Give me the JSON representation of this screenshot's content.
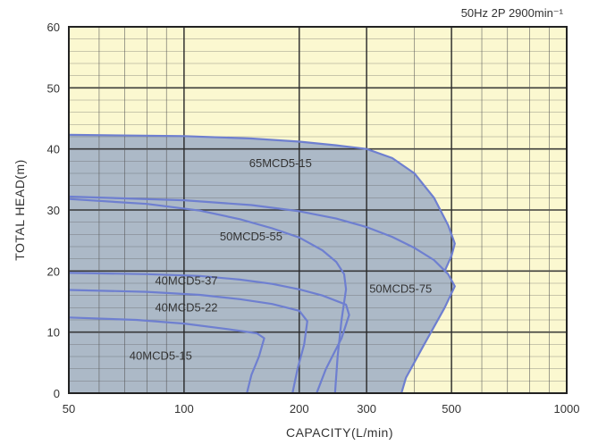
{
  "chart_data": {
    "type": "area",
    "title": "",
    "subtitle": "50Hz 2P 2900min⁻¹",
    "xlabel": "CAPACITY(L/min)",
    "ylabel": "TOTAL HEAD(m)",
    "x_scale": "log",
    "xlim": [
      50,
      1000
    ],
    "ylim": [
      0,
      60
    ],
    "x_ticks": [
      "50",
      "100",
      "200",
      "300",
      "500",
      "1000"
    ],
    "y_ticks": [
      "0",
      "10",
      "20",
      "30",
      "40",
      "50",
      "60"
    ],
    "grid": true,
    "colors": {
      "plot_background": "#fbf8d0",
      "region_fill": "#a8b5c6",
      "curve_stroke": "#6e7fd0",
      "grid_major": "#2a2a2a",
      "grid_minor": "#555555",
      "frame": "#222222"
    },
    "series": [
      {
        "name": "65MCD5-15",
        "points": [
          [
            50,
            42.3
          ],
          [
            100,
            42.1
          ],
          [
            150,
            41.7
          ],
          [
            200,
            41.2
          ],
          [
            250,
            40.6
          ],
          [
            300,
            40.0
          ],
          [
            350,
            38.5
          ],
          [
            400,
            36.0
          ],
          [
            450,
            32.0
          ],
          [
            490,
            27.5
          ],
          [
            510,
            24.5
          ],
          [
            500,
            22.5
          ],
          [
            480,
            20.0
          ]
        ]
      },
      {
        "name": "50MCD5-75",
        "points": [
          [
            50,
            32.2
          ],
          [
            100,
            31.6
          ],
          [
            150,
            30.8
          ],
          [
            200,
            29.8
          ],
          [
            250,
            28.6
          ],
          [
            300,
            27.2
          ],
          [
            350,
            25.6
          ],
          [
            400,
            23.8
          ],
          [
            450,
            21.8
          ],
          [
            490,
            19.5
          ],
          [
            510,
            17.5
          ],
          [
            480,
            14.0
          ],
          [
            420,
            7.5
          ],
          [
            380,
            2.5
          ],
          [
            370,
            0
          ]
        ]
      },
      {
        "name": "50MCD5-55",
        "points": [
          [
            50,
            31.8
          ],
          [
            80,
            31.0
          ],
          [
            110,
            29.9
          ],
          [
            140,
            28.5
          ],
          [
            170,
            27.0
          ],
          [
            200,
            25.5
          ],
          [
            230,
            23.4
          ],
          [
            250,
            21.5
          ],
          [
            262,
            19.5
          ],
          [
            265,
            17.0
          ],
          [
            258,
            12.0
          ],
          [
            252,
            6.0
          ],
          [
            248,
            0
          ]
        ]
      },
      {
        "name": "40MCD5-37",
        "points": [
          [
            50,
            19.7
          ],
          [
            80,
            19.5
          ],
          [
            110,
            19.2
          ],
          [
            140,
            18.6
          ],
          [
            170,
            17.9
          ],
          [
            200,
            17.0
          ],
          [
            230,
            16.0
          ],
          [
            265,
            14.5
          ],
          [
            270,
            12.8
          ],
          [
            258,
            9.0
          ],
          [
            235,
            4.0
          ],
          [
            222,
            0
          ]
        ]
      },
      {
        "name": "40MCD5-22",
        "points": [
          [
            50,
            16.9
          ],
          [
            80,
            16.6
          ],
          [
            110,
            16.1
          ],
          [
            140,
            15.4
          ],
          [
            170,
            14.6
          ],
          [
            200,
            13.5
          ],
          [
            210,
            11.8
          ],
          [
            206,
            8.0
          ],
          [
            198,
            4.0
          ],
          [
            192,
            0
          ]
        ]
      },
      {
        "name": "40MCD5-15",
        "points": [
          [
            50,
            12.4
          ],
          [
            75,
            12.0
          ],
          [
            100,
            11.4
          ],
          [
            130,
            10.5
          ],
          [
            155,
            9.8
          ],
          [
            162,
            9.0
          ],
          [
            157,
            6.0
          ],
          [
            150,
            3.0
          ],
          [
            146,
            0
          ]
        ]
      }
    ],
    "labels": [
      {
        "text": "65MCD5-15",
        "x": 148,
        "y": 37.0
      },
      {
        "text": "50MCD5-55",
        "x": 124,
        "y": 25.0
      },
      {
        "text": "50MCD5-75",
        "x": 305,
        "y": 16.5
      },
      {
        "text": "40MCD5-37",
        "x": 84,
        "y": 17.8
      },
      {
        "text": "40MCD5-22",
        "x": 84,
        "y": 13.4
      },
      {
        "text": "40MCD5-15",
        "x": 72,
        "y": 5.5
      }
    ]
  }
}
